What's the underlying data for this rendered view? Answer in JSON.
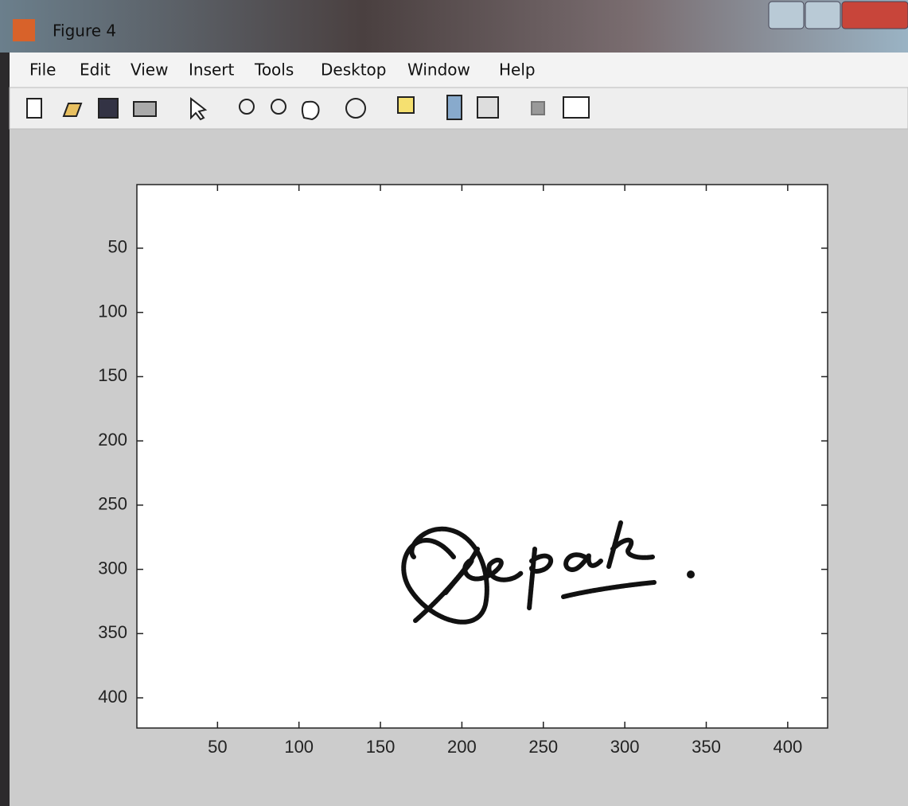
{
  "window": {
    "title": "Figure 4"
  },
  "menu": [
    "File",
    "Edit",
    "View",
    "Insert",
    "Tools",
    "Desktop",
    "Window",
    "Help"
  ],
  "chart_data": {
    "type": "image",
    "xlim": [
      0.5,
      424.5
    ],
    "ylim": [
      0.5,
      423.5
    ],
    "y_reversed": true,
    "xticks": [
      50,
      100,
      150,
      200,
      250,
      300,
      350,
      400
    ],
    "yticks": [
      50,
      100,
      150,
      200,
      250,
      300,
      350,
      400
    ]
  }
}
